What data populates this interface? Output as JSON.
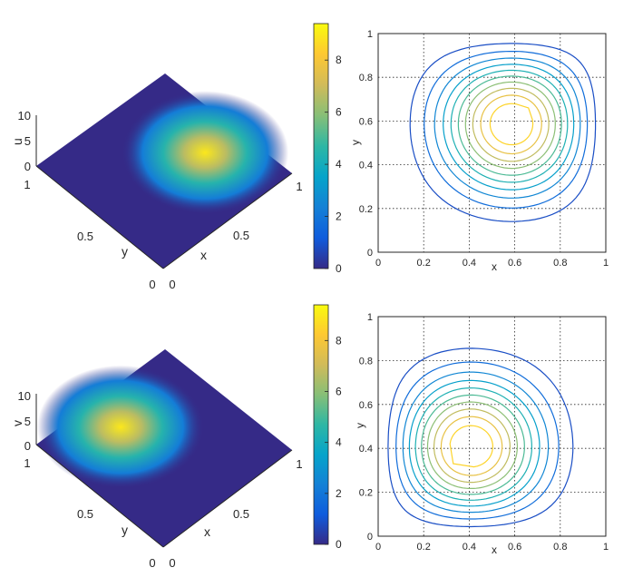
{
  "colorbar_stops": [
    "#352a87",
    "#0f5cdd",
    "#1481d6",
    "#06a4ca",
    "#2eb7a4",
    "#87bf77",
    "#d1bb59",
    "#fec832",
    "#f9fb0e"
  ],
  "chart_data": [
    {
      "type": "surface",
      "zlabel": "u",
      "ylabel": "y",
      "xlabel": "x",
      "xlim": [
        0,
        1
      ],
      "ylim": [
        0,
        1
      ],
      "zlim": [
        0,
        10
      ],
      "x_ticks": [
        "0.5",
        "1"
      ],
      "y_ticks": [
        "0",
        "0.5",
        "1"
      ],
      "z_ticks": [
        "0",
        "5",
        "10"
      ],
      "peak": {
        "x": 0.66,
        "y": 0.66,
        "value": 9.4
      }
    },
    {
      "type": "colorbar",
      "range": [
        0,
        9.4
      ],
      "ticks": [
        "0",
        "2",
        "4",
        "6",
        "8"
      ]
    },
    {
      "type": "contour",
      "xlabel": "x",
      "ylabel": "y",
      "xlim": [
        0,
        1
      ],
      "ylim": [
        0,
        1
      ],
      "grid": true,
      "x_ticks": [
        "0",
        "0.2",
        "0.4",
        "0.6",
        "0.8",
        "1"
      ],
      "y_ticks": [
        "0",
        "0.2",
        "0.4",
        "0.6",
        "0.8",
        "1"
      ],
      "center": {
        "x": 0.66,
        "y": 0.66
      },
      "levels": [
        0.85,
        1.7,
        2.55,
        3.4,
        4.25,
        5.1,
        5.95,
        6.8,
        7.65,
        8.5
      ]
    },
    {
      "type": "surface",
      "zlabel": "v",
      "ylabel": "y",
      "xlabel": "x",
      "xlim": [
        0,
        1
      ],
      "ylim": [
        0,
        1
      ],
      "zlim": [
        0,
        10
      ],
      "x_ticks": [
        "0.5",
        "1"
      ],
      "y_ticks": [
        "0",
        "0.5",
        "1"
      ],
      "z_ticks": [
        "0",
        "5",
        "10"
      ],
      "peak": {
        "x": 0.33,
        "y": 0.33,
        "value": 9.4
      }
    },
    {
      "type": "colorbar",
      "range": [
        0,
        9.4
      ],
      "ticks": [
        "0",
        "2",
        "4",
        "6",
        "8"
      ]
    },
    {
      "type": "contour",
      "xlabel": "x",
      "ylabel": "y",
      "xlim": [
        0,
        1
      ],
      "ylim": [
        0,
        1
      ],
      "grid": true,
      "x_ticks": [
        "0",
        "0.2",
        "0.4",
        "0.6",
        "0.8",
        "1"
      ],
      "y_ticks": [
        "0",
        "0.2",
        "0.4",
        "0.6",
        "0.8",
        "1"
      ],
      "center": {
        "x": 0.33,
        "y": 0.33
      },
      "levels": [
        0.85,
        1.7,
        2.55,
        3.4,
        4.25,
        5.1,
        5.95,
        6.8,
        7.65,
        8.5
      ]
    }
  ]
}
